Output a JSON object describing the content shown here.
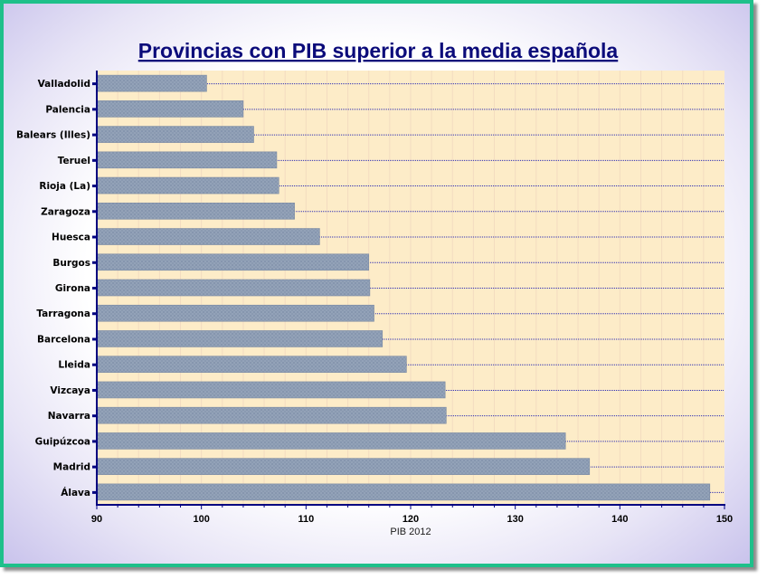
{
  "chart_data": {
    "type": "bar",
    "orientation": "horizontal",
    "title": "Provincias con PIB superior a la media española",
    "xlabel": "PIB 2012",
    "ylabel": "",
    "xlim": [
      90,
      150
    ],
    "xticks": [
      90,
      100,
      110,
      120,
      130,
      140,
      150
    ],
    "categories": [
      "Valladolid",
      "Palencia",
      "Balears (Illes)",
      "Teruel",
      "Rioja (La)",
      "Zaragoza",
      "Huesca",
      "Burgos",
      "Girona",
      "Tarragona",
      "Barcelona",
      "Lleida",
      "Vizcaya",
      "Navarra",
      "Guipúzcoa",
      "Madrid",
      "Álava"
    ],
    "values": [
      100.5,
      104.0,
      105.0,
      107.2,
      107.4,
      108.9,
      111.3,
      116.0,
      116.1,
      116.5,
      117.3,
      119.6,
      123.3,
      123.4,
      134.8,
      137.1,
      148.6
    ],
    "grid": true,
    "legend": "none",
    "colors": {
      "plot_background": "#fdecc8",
      "bar_fill": "#8f9fb6",
      "bar_border": "#7b8aa3",
      "gridline": "#2b2bb3",
      "axis": "#000080",
      "title": "#0b0b7a",
      "frame_border": "#1ec08a"
    }
  }
}
